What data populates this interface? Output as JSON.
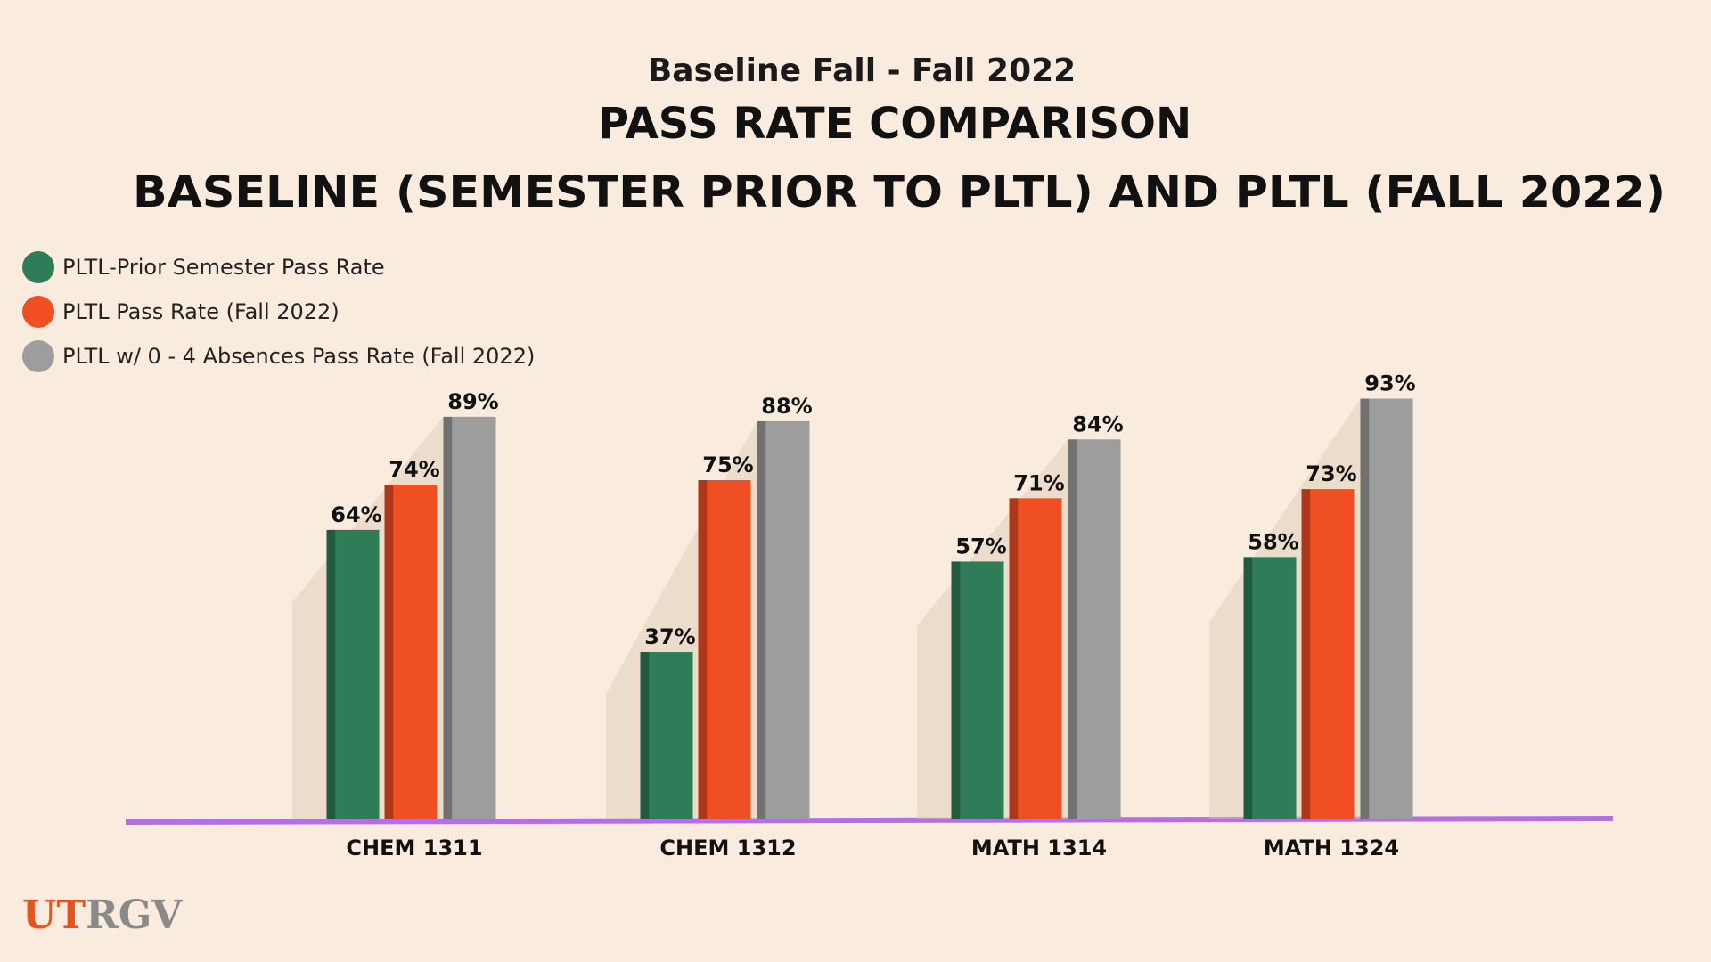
{
  "chart_data": {
    "type": "bar",
    "subtitle": "Baseline Fall - Fall 2022",
    "title": [
      "PASS RATE COMPARISON",
      "BASELINE (SEMESTER PRIOR TO PLTL) AND PLTL (FALL 2022)"
    ],
    "categories": [
      "CHEM 1311",
      "CHEM 1312",
      "MATH 1314",
      "MATH 1324"
    ],
    "series": [
      {
        "name": "PLTL-Prior Semester Pass Rate",
        "color": "#2f7d58",
        "values": [
          64,
          37,
          57,
          58
        ],
        "value_labels": [
          "64%",
          "37%",
          "57%",
          "58%"
        ]
      },
      {
        "name": "PLTL Pass Rate (Fall 2022)",
        "color": "#f04e23",
        "values": [
          74,
          75,
          71,
          73
        ],
        "value_labels": [
          "74%",
          "75%",
          "71%",
          "73%"
        ]
      },
      {
        "name": "PLTL w/ 0 - 4 Absences Pass Rate (Fall 2022)",
        "color": "#9d9d9d",
        "values": [
          89,
          88,
          84,
          93
        ],
        "value_labels": [
          "89%",
          "88%",
          "84%",
          "93%"
        ]
      }
    ],
    "ylim": [
      0,
      100
    ],
    "legend": "top-left"
  },
  "logo": [
    "UT",
    "RGV"
  ]
}
